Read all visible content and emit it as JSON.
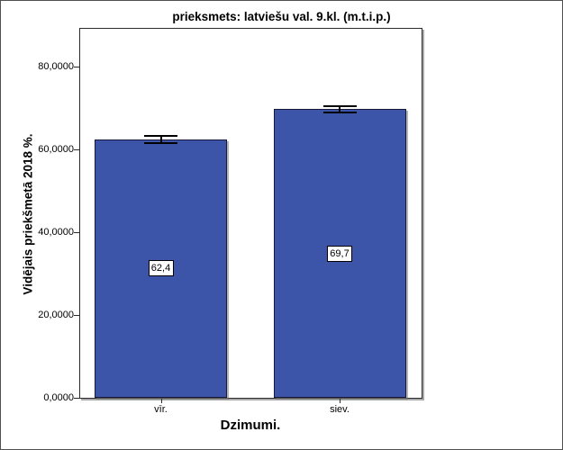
{
  "window": {
    "background_color": "#ffffff",
    "border_color": "#4f4f4f"
  },
  "chart_data": {
    "type": "bar",
    "title": "prieksmets: latviešu val. 9.kl. (m.t.i.p.)",
    "xlabel": "Dzimumi.",
    "ylabel": "Vidējais priekšmetā 2018 %.",
    "categories": [
      "vīr.",
      "siev."
    ],
    "values": [
      62.4,
      69.7
    ],
    "value_labels": [
      "62,4",
      "69,7"
    ],
    "error_bars": [
      0.85,
      0.75
    ],
    "ylim": [
      0,
      89.35
    ],
    "yticks": [
      {
        "value": 0,
        "label": "0,0000"
      },
      {
        "value": 20,
        "label": "20,0000"
      },
      {
        "value": 40,
        "label": "40,0000"
      },
      {
        "value": 60,
        "label": "60,0000"
      },
      {
        "value": 80,
        "label": "80,0000"
      }
    ],
    "grid": false,
    "legend": false,
    "bar_color": "#3D55A8",
    "bar_border_color": "#181838",
    "error_bar_color": "#000000"
  }
}
